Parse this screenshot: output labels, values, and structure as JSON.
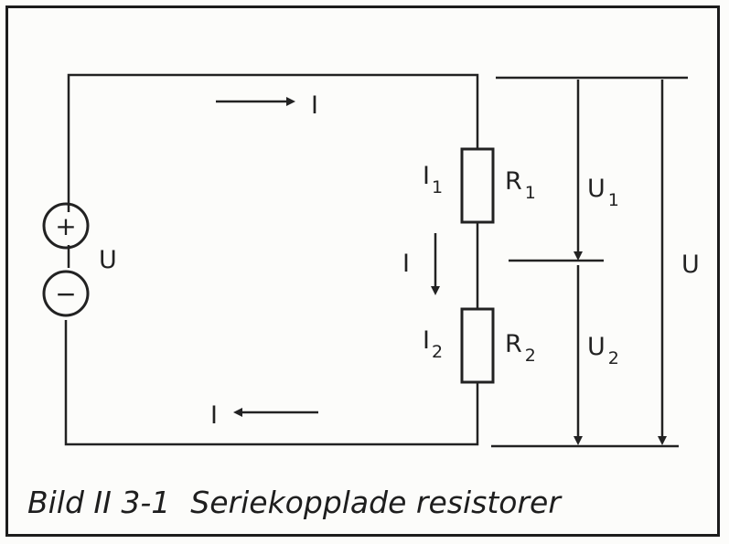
{
  "labels": {
    "current_top": "I",
    "current_mid": "I",
    "current_bottom": "I",
    "source_voltage": "U",
    "total_voltage": "U",
    "i1": {
      "main": "I",
      "sub": "1"
    },
    "i2": {
      "main": "I",
      "sub": "2"
    },
    "r1": {
      "main": "R",
      "sub": "1"
    },
    "r2": {
      "main": "R",
      "sub": "2"
    },
    "u1": {
      "main": "U",
      "sub": "1"
    },
    "u2": {
      "main": "U",
      "sub": "2"
    },
    "plus_sign": "+",
    "minus_sign": "−"
  },
  "caption": {
    "number": "Bild II 3-1",
    "text": "Seriekopplade resistorer"
  }
}
